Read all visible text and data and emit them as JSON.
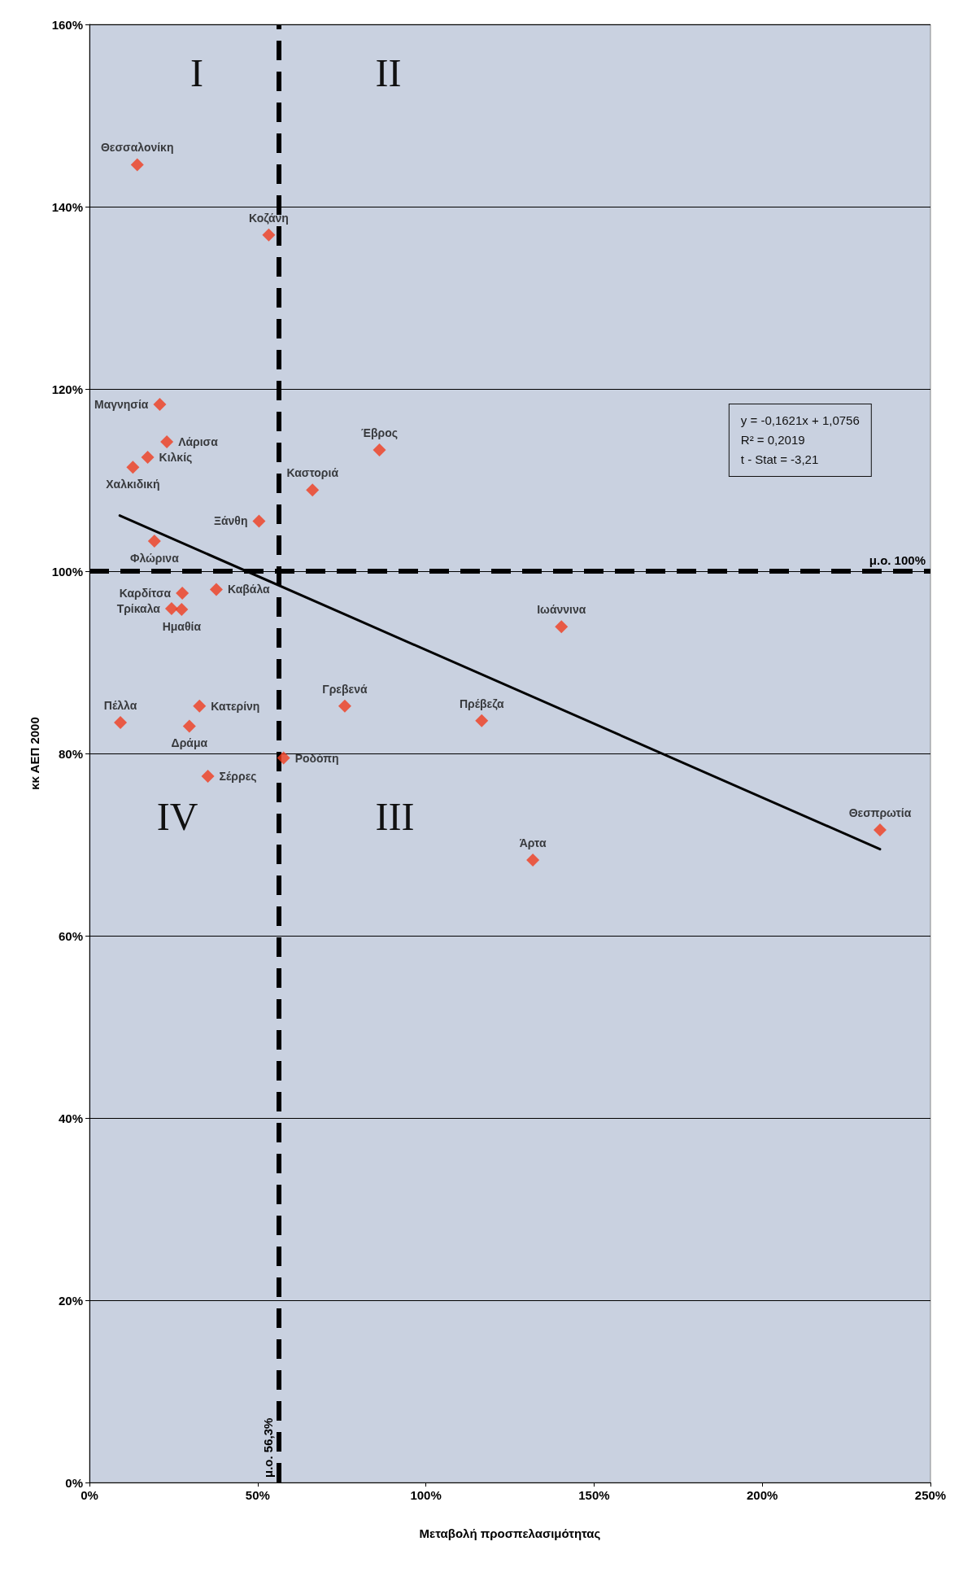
{
  "chart_data": {
    "type": "scatter",
    "xlabel": "Μεταβολή προσπελασιμότητας",
    "ylabel": "κκ ΑΕΠ 2000",
    "xlim": [
      0,
      250
    ],
    "xticks": [
      {
        "value": 0,
        "label": "0%"
      },
      {
        "value": 50,
        "label": "50%"
      },
      {
        "value": 100,
        "label": "100%"
      },
      {
        "value": 150,
        "label": "150%"
      },
      {
        "value": 200,
        "label": "200%"
      },
      {
        "value": 250,
        "label": "250%"
      }
    ],
    "ylim": [
      0,
      160
    ],
    "yticks": [
      {
        "value": 0,
        "label": "0%"
      },
      {
        "value": 20,
        "label": "20%"
      },
      {
        "value": 40,
        "label": "40%"
      },
      {
        "value": 60,
        "label": "60%"
      },
      {
        "value": 80,
        "label": "80%"
      },
      {
        "value": 100,
        "label": "100%"
      },
      {
        "value": 120,
        "label": "120%"
      },
      {
        "value": 140,
        "label": "140%"
      },
      {
        "value": 160,
        "label": "160%"
      }
    ],
    "grid": "y",
    "legend": false,
    "marker": "diamond",
    "series": [
      {
        "name": "Θεσσαλονίκη",
        "color": "#f03c1e",
        "x": [
          14.2
        ],
        "values": [
          144.6
        ]
      },
      {
        "name": "Κοζάνη",
        "color": "#f03c1e",
        "x": [
          53.3
        ],
        "values": [
          136.9
        ]
      },
      {
        "name": "Μαγνησία",
        "color": "#f03c1e",
        "x": [
          20.9
        ],
        "values": [
          118.3
        ]
      },
      {
        "name": "Λάρισα",
        "color": "#f03c1e",
        "x": [
          23.0
        ],
        "values": [
          114.2
        ]
      },
      {
        "name": "Κιλκίς",
        "color": "#f03c1e",
        "x": [
          17.3
        ],
        "values": [
          112.5
        ]
      },
      {
        "name": "Χαλκιδική",
        "color": "#f03c1e",
        "x": [
          12.9
        ],
        "values": [
          111.4
        ]
      },
      {
        "name": "Φλώρινα",
        "color": "#f03c1e",
        "x": [
          19.3
        ],
        "values": [
          103.3
        ]
      },
      {
        "name": "Ξάνθη",
        "color": "#f03c1e",
        "x": [
          50.4
        ],
        "values": [
          105.5
        ]
      },
      {
        "name": "Καστοριά",
        "color": "#f03c1e",
        "x": [
          66.3
        ],
        "values": [
          108.9
        ]
      },
      {
        "name": "Έβρος",
        "color": "#f03c1e",
        "x": [
          86.2
        ],
        "values": [
          113.3
        ]
      },
      {
        "name": "Καβάλα",
        "color": "#f03c1e",
        "x": [
          37.7
        ],
        "values": [
          98.0
        ]
      },
      {
        "name": "Ημαθία",
        "color": "#f03c1e",
        "x": [
          27.4
        ],
        "values": [
          95.8
        ]
      },
      {
        "name": "Καρδίτσα",
        "color": "#f03c1e",
        "x": [
          27.6
        ],
        "values": [
          97.6
        ]
      },
      {
        "name": "Τρίκαλα",
        "color": "#f03c1e",
        "x": [
          24.4
        ],
        "values": [
          95.9
        ]
      },
      {
        "name": "Κατερίνη",
        "color": "#f03c1e",
        "x": [
          32.7
        ],
        "values": [
          85.2
        ]
      },
      {
        "name": "Δράμα",
        "color": "#f03c1e",
        "x": [
          29.7
        ],
        "values": [
          83.0
        ]
      },
      {
        "name": "Σέρρες",
        "color": "#f03c1e",
        "x": [
          35.2
        ],
        "values": [
          77.5
        ]
      },
      {
        "name": "Πέλλα",
        "color": "#f03c1e",
        "x": [
          9.2
        ],
        "values": [
          83.4
        ]
      },
      {
        "name": "Ροδόπη",
        "color": "#f03c1e",
        "x": [
          57.7
        ],
        "values": [
          79.5
        ]
      },
      {
        "name": "Γρεβενά",
        "color": "#f03c1e",
        "x": [
          75.9
        ],
        "values": [
          85.2
        ]
      },
      {
        "name": "Πρέβεζα",
        "color": "#f03c1e",
        "x": [
          116.6
        ],
        "values": [
          83.6
        ]
      },
      {
        "name": "Άρτα",
        "color": "#f03c1e",
        "x": [
          131.8
        ],
        "values": [
          68.3
        ]
      },
      {
        "name": "Ιωάννινα",
        "color": "#f03c1e",
        "x": [
          140.3
        ],
        "values": [
          93.9
        ]
      },
      {
        "name": "Θεσπρωτία",
        "color": "#f03c1e",
        "x": [
          235.0
        ],
        "values": [
          71.6
        ]
      },
      {
        "type": "line",
        "color": "#000000",
        "marker": "none",
        "line_style": "solid",
        "x": [
          9,
          235
        ],
        "values": [
          106.1,
          69.5
        ]
      }
    ],
    "ref_lines": [
      {
        "axis": "y",
        "value": 100,
        "label": "μ.ο. 100%",
        "color": "#000000",
        "line_style": "dashed"
      },
      {
        "axis": "x",
        "value": 56.3,
        "label": "μ.ο. 56,3%",
        "color": "#000000",
        "line_style": "dashed"
      }
    ],
    "annotations": [
      "I",
      "II",
      "III",
      "IV",
      "y = -0,1621x + 1,0756\nR² = 0,2019\nt - Stat = -3,21"
    ]
  }
}
